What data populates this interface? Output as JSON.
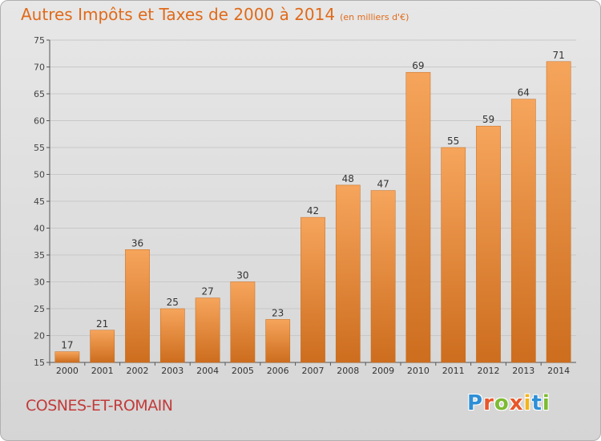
{
  "header": {
    "title": "Autres Impôts et Taxes de 2000 à 2014",
    "subtitle": "(en milliers d'€)"
  },
  "footer": {
    "commune": "COSNES-ET-ROMAIN",
    "logo_letters": [
      "P",
      "r",
      "o",
      "x",
      "i",
      "t",
      "i"
    ],
    "logo_colors": [
      "#2e8fd6",
      "#e8572a",
      "#7dbb33",
      "#e8572a",
      "#f2b51b",
      "#2e8fd6",
      "#7dbb33"
    ]
  },
  "colors": {
    "bar_top": "#f6a55c",
    "bar_bottom": "#cd6d1e",
    "bar_stroke": "#c46a1e",
    "title": "#e06a1a",
    "commune": "#c23b3b",
    "grid": "#c8c8c8"
  },
  "chart_data": {
    "type": "bar",
    "title": "Autres Impôts et Taxes de 2000 à 2014",
    "subtitle": "(en milliers d'€)",
    "categories": [
      "2000",
      "2001",
      "2002",
      "2003",
      "2004",
      "2005",
      "2006",
      "2007",
      "2008",
      "2009",
      "2010",
      "2011",
      "2012",
      "2013",
      "2014"
    ],
    "values": [
      17,
      21,
      36,
      25,
      27,
      30,
      23,
      42,
      48,
      47,
      69,
      55,
      59,
      64,
      71
    ],
    "ylim": [
      15,
      75
    ],
    "yticks": [
      15,
      20,
      25,
      30,
      35,
      40,
      45,
      50,
      55,
      60,
      65,
      70,
      75
    ],
    "xlabel": "",
    "ylabel": "",
    "grid": true,
    "legend": "none"
  }
}
